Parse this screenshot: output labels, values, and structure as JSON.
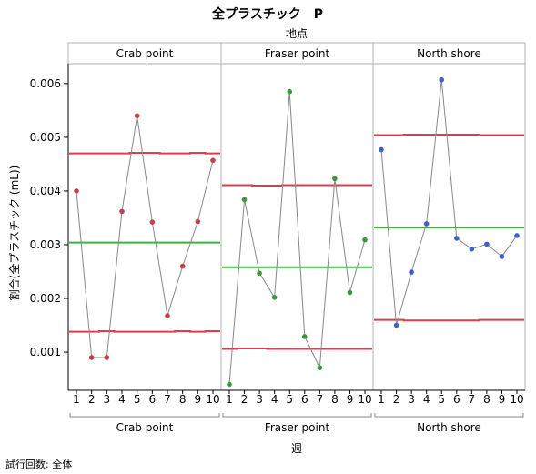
{
  "title": "全プラスチック　P",
  "group_label": "地点",
  "x_axis_label": "週",
  "y_axis_label": "割合(全プラスチック (mL))",
  "footer": "試行回数: 全体",
  "colors": {
    "limit": "#e03c4c",
    "center": "#3db33d",
    "connector": "#888888",
    "panel_border": "#b0b0b0",
    "header_bg": "#ffffff"
  },
  "chart_data": {
    "type": "line",
    "chart_kind": "P control chart",
    "x": [
      1,
      2,
      3,
      4,
      5,
      6,
      7,
      8,
      9,
      10
    ],
    "y_ticks": [
      "0.001",
      "0.002",
      "0.003",
      "0.004",
      "0.005",
      "0.006"
    ],
    "y_tick_values": [
      0.001,
      0.002,
      0.003,
      0.004,
      0.005,
      0.006
    ],
    "ylim": [
      0.00029,
      0.00637
    ],
    "grid": false,
    "panels": [
      {
        "name": "Crab point",
        "marker_color": "#c0444c",
        "values": [
          0.004,
          0.0009,
          0.0009,
          0.00362,
          0.0054,
          0.00342,
          0.00168,
          0.0026,
          0.00343,
          0.00457
        ],
        "ucl": [
          0.0047,
          0.0047,
          0.0047,
          0.0047,
          0.00471,
          0.00471,
          0.0047,
          0.0047,
          0.00471,
          0.0047
        ],
        "center": 0.00304,
        "lcl": [
          0.00138,
          0.00138,
          0.00139,
          0.00138,
          0.00138,
          0.00138,
          0.00138,
          0.00139,
          0.00138,
          0.00139
        ]
      },
      {
        "name": "Fraser point",
        "marker_color": "#3a9a3a",
        "values": [
          0.0004,
          0.00384,
          0.00247,
          0.00202,
          0.00585,
          0.00129,
          0.00071,
          0.00423,
          0.00211,
          0.00309
        ],
        "ucl": [
          0.00411,
          0.00411,
          0.0041,
          0.0041,
          0.00411,
          0.00411,
          0.00411,
          0.00411,
          0.00411,
          0.00411
        ],
        "center": 0.00258,
        "lcl": [
          0.00106,
          0.00107,
          0.00107,
          0.00106,
          0.00106,
          0.00106,
          0.00106,
          0.00106,
          0.00106,
          0.00106
        ]
      },
      {
        "name": "North shore",
        "marker_color": "#3c64c8",
        "values": [
          0.00477,
          0.0015,
          0.00249,
          0.00339,
          0.00607,
          0.00312,
          0.00292,
          0.00301,
          0.00278,
          0.00317
        ],
        "ucl": [
          0.00504,
          0.00504,
          0.00505,
          0.00505,
          0.00505,
          0.00505,
          0.00505,
          0.00504,
          0.00504,
          0.00504
        ],
        "center": 0.00332,
        "lcl": [
          0.0016,
          0.0016,
          0.00159,
          0.00159,
          0.00159,
          0.00159,
          0.00159,
          0.0016,
          0.0016,
          0.0016
        ]
      }
    ]
  }
}
